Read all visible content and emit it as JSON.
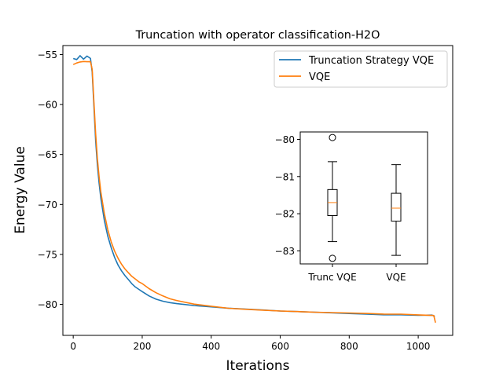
{
  "chart_data": [
    {
      "type": "line",
      "title": "Truncation with operator classification-H2O",
      "xlabel": "Iterations",
      "ylabel": "Energy Value",
      "xlim": [
        -30,
        1100
      ],
      "ylim": [
        -83.1,
        -54.1
      ],
      "xticks": [
        0,
        200,
        400,
        600,
        800,
        1000
      ],
      "xtick_labels": [
        "0",
        "200",
        "400",
        "600",
        "800",
        "1000"
      ],
      "yticks": [
        -55,
        -60,
        -65,
        -70,
        -75,
        -80
      ],
      "ytick_labels": [
        "−55",
        "−60",
        "−65",
        "−70",
        "−75",
        "−80"
      ],
      "legend": {
        "placement": "top-right"
      },
      "series": [
        {
          "name": "Truncation Strategy VQE",
          "color": "#1f77b4",
          "x": [
            0,
            10,
            20,
            30,
            40,
            50,
            55,
            60,
            65,
            70,
            75,
            80,
            90,
            100,
            110,
            120,
            130,
            140,
            150,
            160,
            170,
            180,
            190,
            200,
            220,
            240,
            260,
            280,
            300,
            350,
            400,
            450,
            500,
            550,
            600,
            650,
            700,
            750,
            800,
            850,
            900,
            950,
            1000,
            1040,
            1048
          ],
          "y": [
            -55.4,
            -55.6,
            -55.3,
            -55.7,
            -55.4,
            -55.6,
            -56.8,
            -60.2,
            -63.6,
            -66.0,
            -67.8,
            -69.3,
            -71.5,
            -73.1,
            -74.3,
            -75.3,
            -76.1,
            -76.7,
            -77.2,
            -77.6,
            -78.0,
            -78.3,
            -78.5,
            -78.7,
            -79.1,
            -79.4,
            -79.6,
            -79.75,
            -79.9,
            -80.1,
            -80.25,
            -80.4,
            -80.5,
            -80.6,
            -80.7,
            -80.75,
            -80.8,
            -80.85,
            -80.9,
            -80.95,
            -81.0,
            -81.0,
            -81.05,
            -81.05,
            -81.2
          ]
        },
        {
          "name": "VQE",
          "color": "#ff7f0e",
          "x": [
            0,
            10,
            20,
            30,
            40,
            50,
            55,
            60,
            65,
            70,
            75,
            80,
            90,
            100,
            110,
            120,
            130,
            140,
            150,
            160,
            170,
            180,
            190,
            200,
            220,
            240,
            260,
            280,
            300,
            350,
            400,
            450,
            500,
            550,
            600,
            650,
            700,
            750,
            800,
            850,
            900,
            950,
            1000,
            1045,
            1050
          ],
          "y": [
            -55.8,
            -55.6,
            -55.5,
            -55.5,
            -55.6,
            -55.7,
            -56.5,
            -59.8,
            -63.0,
            -65.5,
            -67.3,
            -68.8,
            -70.9,
            -72.5,
            -73.7,
            -74.6,
            -75.3,
            -75.9,
            -76.4,
            -76.8,
            -77.2,
            -77.5,
            -77.8,
            -78.0,
            -78.5,
            -78.9,
            -79.2,
            -79.45,
            -79.6,
            -79.95,
            -80.15,
            -80.35,
            -80.45,
            -80.55,
            -80.65,
            -80.72,
            -80.8,
            -80.85,
            -80.9,
            -80.95,
            -81.0,
            -81.0,
            -81.05,
            -81.1,
            -81.8
          ]
        }
      ]
    },
    {
      "type": "box",
      "categories": [
        "Trunc VQE",
        "VQE"
      ],
      "ylim": [
        -83.35,
        -79.8
      ],
      "yticks": [
        -80,
        -81,
        -82,
        -83
      ],
      "ytick_labels": [
        "−80",
        "−81",
        "−82",
        "−83"
      ],
      "boxes": [
        {
          "name": "Trunc VQE",
          "whisker_low": -82.75,
          "q1": -82.05,
          "median": -81.7,
          "q3": -81.35,
          "whisker_high": -80.6,
          "outliers": [
            -79.95,
            -83.2
          ]
        },
        {
          "name": "VQE",
          "whisker_low": -83.12,
          "q1": -82.2,
          "median": -81.85,
          "q3": -81.45,
          "whisker_high": -80.68,
          "outliers": []
        }
      ],
      "median_color": "#ff7f0e"
    }
  ]
}
